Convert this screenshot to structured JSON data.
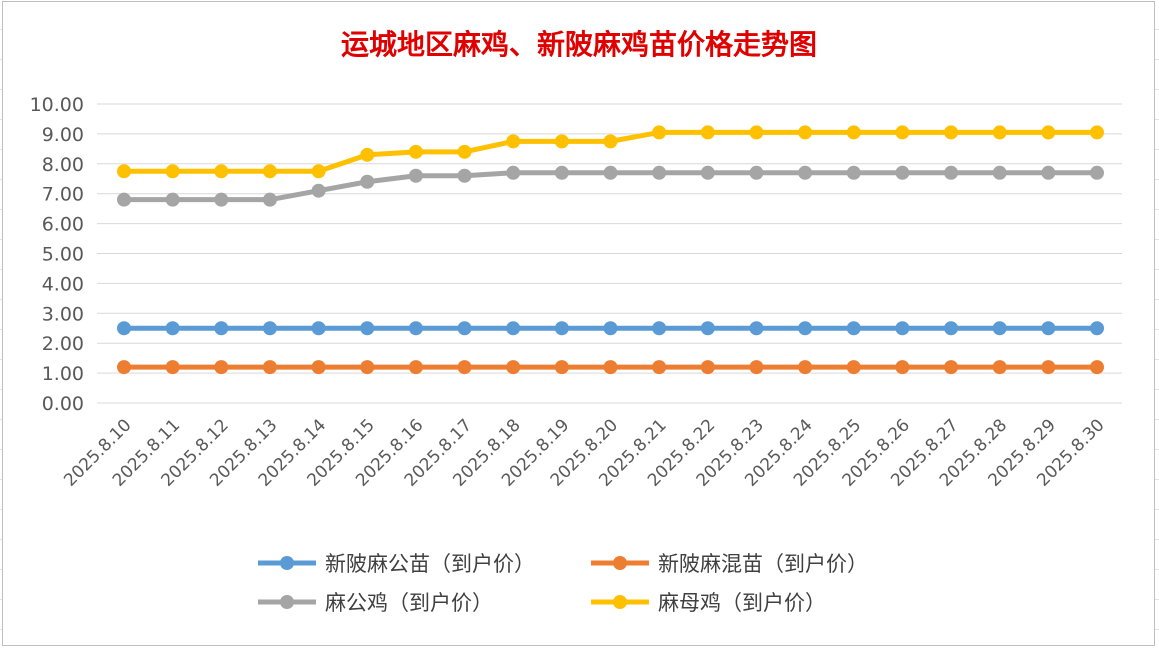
{
  "chart_data": {
    "type": "line",
    "title": "运城地区麻鸡、新陂麻鸡苗价格走势图",
    "xlabel": "",
    "ylabel": "",
    "ylim": [
      0,
      10
    ],
    "yticks": [
      "0.00",
      "1.00",
      "2.00",
      "3.00",
      "4.00",
      "5.00",
      "6.00",
      "7.00",
      "8.00",
      "9.00",
      "10.00"
    ],
    "grid": true,
    "legend_position": "bottom",
    "categories": [
      "2025.8.10",
      "2025.8.11",
      "2025.8.12",
      "2025.8.13",
      "2025.8.14",
      "2025.8.15",
      "2025.8.16",
      "2025.8.17",
      "2025.8.18",
      "2025.8.19",
      "2025.8.20",
      "2025.8.21",
      "2025.8.22",
      "2025.8.23",
      "2025.8.24",
      "2025.8.25",
      "2025.8.26",
      "2025.8.27",
      "2025.8.28",
      "2025.8.29",
      "2025.8.30"
    ],
    "series": [
      {
        "name": "新陂麻公苗（到户价）",
        "color": "#5b9bd5",
        "values": [
          2.5,
          2.5,
          2.5,
          2.5,
          2.5,
          2.5,
          2.5,
          2.5,
          2.5,
          2.5,
          2.5,
          2.5,
          2.5,
          2.5,
          2.5,
          2.5,
          2.5,
          2.5,
          2.5,
          2.5,
          2.5
        ]
      },
      {
        "name": "新陂麻混苗（到户价）",
        "color": "#ed7d31",
        "values": [
          1.2,
          1.2,
          1.2,
          1.2,
          1.2,
          1.2,
          1.2,
          1.2,
          1.2,
          1.2,
          1.2,
          1.2,
          1.2,
          1.2,
          1.2,
          1.2,
          1.2,
          1.2,
          1.2,
          1.2,
          1.2
        ]
      },
      {
        "name": "麻公鸡（到户价）",
        "color": "#a5a5a5",
        "values": [
          6.8,
          6.8,
          6.8,
          6.8,
          7.1,
          7.4,
          7.6,
          7.6,
          7.7,
          7.7,
          7.7,
          7.7,
          7.7,
          7.7,
          7.7,
          7.7,
          7.7,
          7.7,
          7.7,
          7.7,
          7.7
        ]
      },
      {
        "name": "麻母鸡（到户价）",
        "color": "#ffc000",
        "values": [
          7.75,
          7.75,
          7.75,
          7.75,
          7.75,
          8.3,
          8.4,
          8.4,
          8.75,
          8.75,
          8.75,
          9.05,
          9.05,
          9.05,
          9.05,
          9.05,
          9.05,
          9.05,
          9.05,
          9.05,
          9.05
        ]
      }
    ]
  }
}
